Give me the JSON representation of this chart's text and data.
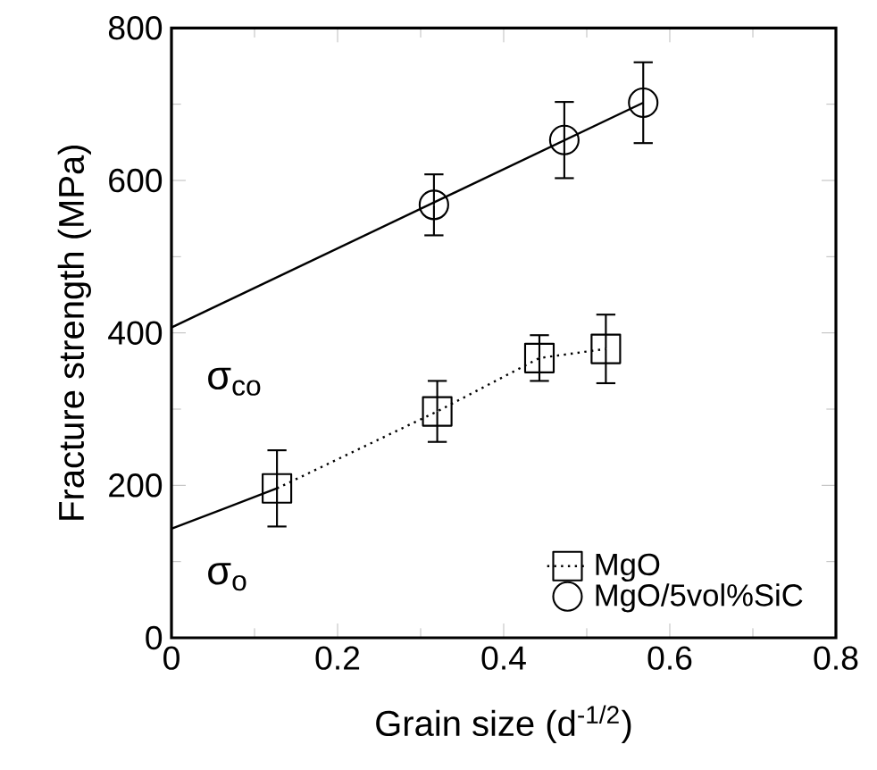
{
  "chart_data": {
    "type": "scatter",
    "xlabel": "Grain size (d$^{-1/2}$)",
    "ylabel": "Fracture strength (MPa)",
    "xlim": [
      0,
      0.8
    ],
    "ylim": [
      0,
      800
    ],
    "xticks": [
      0,
      0.2,
      0.4,
      0.6,
      0.8
    ],
    "yticks": [
      0,
      200,
      400,
      600,
      800
    ],
    "legend": "bottom right",
    "grid": false,
    "series": [
      {
        "name": "MgO",
        "type": "line",
        "marker": "square",
        "line_style": "dotted",
        "color": "#000000",
        "x": [
          0.127,
          0.32,
          0.443,
          0.523
        ],
        "values": [
          196,
          297,
          367,
          379
        ],
        "errors": [
          50,
          40,
          30,
          45
        ]
      },
      {
        "name": "MgO/5vol%SiC",
        "marker": "circle",
        "color": "#000000",
        "x": [
          0.316,
          0.473,
          0.568
        ],
        "values": [
          568,
          653,
          702
        ],
        "errors": [
          40,
          50,
          53
        ]
      },
      {
        "type": "line",
        "marker": "none",
        "line_style": "solid",
        "color": "#000000",
        "x": [
          0,
          0.127
        ],
        "values": [
          143,
          196
        ]
      },
      {
        "type": "line",
        "marker": "none",
        "line_style": "solid",
        "color": "#000000",
        "x": [
          0,
          0.568
        ],
        "values": [
          407,
          702
        ]
      }
    ],
    "annotations": [
      "σ$_{co}$",
      "σ$_{o}$"
    ]
  }
}
